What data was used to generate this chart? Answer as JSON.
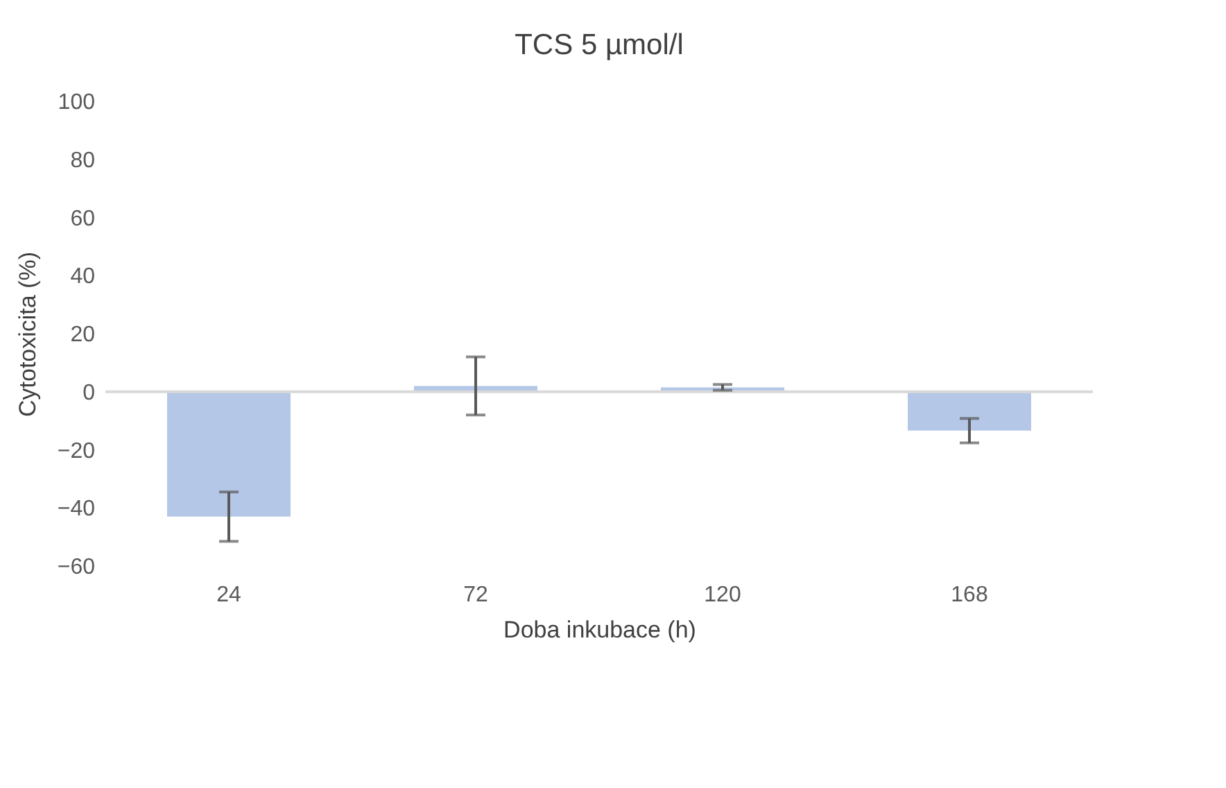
{
  "chart_data": {
    "type": "bar",
    "title": "TCS 5 µmol/l",
    "xlabel": "Doba inkubace (h)",
    "ylabel": "Cytotoxicita (%)",
    "categories": [
      "24",
      "72",
      "120",
      "168"
    ],
    "values": [
      -43,
      2,
      1.5,
      -13.4
    ],
    "errors": [
      8.5,
      10,
      1,
      4.2
    ],
    "color": "#b4c7e7",
    "ylim": [
      -60,
      100
    ],
    "yticks": [
      -60,
      -40,
      -20,
      0,
      20,
      40,
      60,
      80,
      100
    ],
    "grid": false,
    "ref_lines": [
      {
        "axis": "y",
        "value": 0,
        "color": "#d9d9d9"
      }
    ]
  }
}
